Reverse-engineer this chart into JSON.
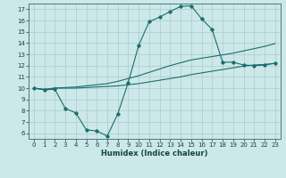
{
  "xlabel": "Humidex (Indice chaleur)",
  "background_color": "#cce8e8",
  "grid_color": "#aacccc",
  "line_color": "#1a6e6e",
  "xlim": [
    -0.5,
    23.5
  ],
  "ylim": [
    5.5,
    17.5
  ],
  "xticks": [
    0,
    1,
    2,
    3,
    4,
    5,
    6,
    7,
    8,
    9,
    10,
    11,
    12,
    13,
    14,
    15,
    16,
    17,
    18,
    19,
    20,
    21,
    22,
    23
  ],
  "yticks": [
    6,
    7,
    8,
    9,
    10,
    11,
    12,
    13,
    14,
    15,
    16,
    17
  ],
  "line1_x": [
    0,
    1,
    2,
    3,
    4,
    5,
    6,
    7,
    8,
    9,
    10,
    11,
    12,
    13,
    14,
    15,
    16,
    17,
    18,
    19,
    20,
    21,
    22,
    23
  ],
  "line1_y": [
    10.0,
    9.85,
    10.0,
    10.0,
    10.0,
    10.05,
    10.1,
    10.15,
    10.2,
    10.3,
    10.4,
    10.55,
    10.7,
    10.85,
    11.0,
    11.2,
    11.35,
    11.5,
    11.65,
    11.8,
    11.95,
    12.05,
    12.1,
    12.2
  ],
  "line2_x": [
    0,
    1,
    2,
    3,
    4,
    5,
    6,
    7,
    8,
    9,
    10,
    11,
    12,
    13,
    14,
    15,
    16,
    17,
    18,
    19,
    20,
    21,
    22,
    23
  ],
  "line2_y": [
    10.0,
    9.9,
    10.0,
    10.05,
    10.1,
    10.2,
    10.3,
    10.4,
    10.6,
    10.85,
    11.1,
    11.4,
    11.7,
    12.0,
    12.25,
    12.5,
    12.65,
    12.8,
    12.95,
    13.1,
    13.3,
    13.5,
    13.7,
    13.95
  ],
  "line3_x": [
    0,
    1,
    2,
    3,
    4,
    5,
    6,
    7,
    8,
    9,
    10,
    11,
    12,
    13,
    14,
    15,
    16,
    17,
    18,
    19,
    20,
    21,
    22,
    23
  ],
  "line3_y": [
    10.0,
    9.85,
    9.9,
    8.2,
    7.8,
    6.3,
    6.2,
    5.75,
    7.7,
    10.5,
    13.8,
    15.9,
    16.3,
    16.8,
    17.25,
    17.3,
    16.15,
    15.2,
    12.3,
    12.3,
    12.05,
    12.0,
    12.05,
    12.2
  ]
}
